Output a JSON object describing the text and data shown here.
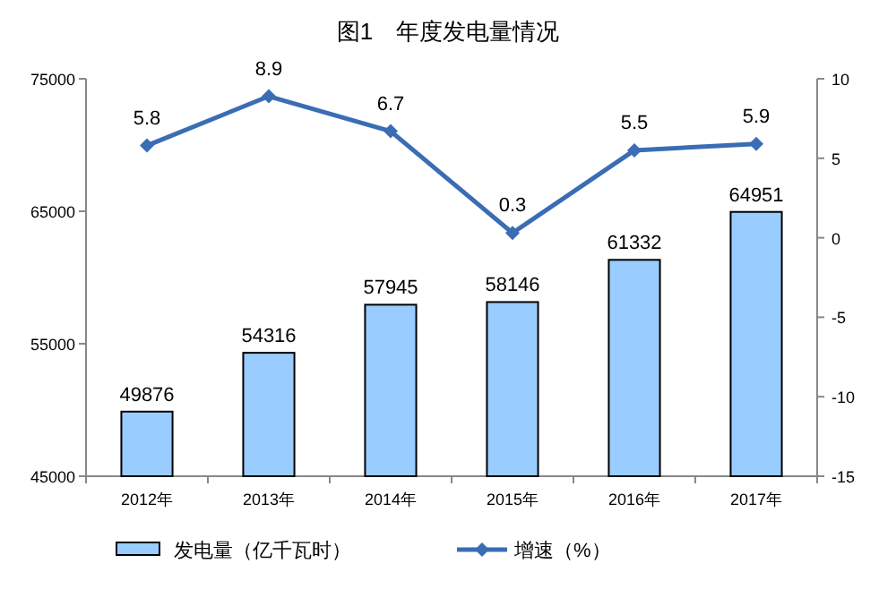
{
  "chart_data": {
    "type": "bar",
    "title": "图1　年度发电量情况",
    "categories": [
      "2012年",
      "2013年",
      "2014年",
      "2015年",
      "2016年",
      "2017年"
    ],
    "series": [
      {
        "name": "发电量（亿千瓦时）",
        "color": "#99ccff",
        "values": [
          49876,
          54316,
          57945,
          58146,
          61332,
          64951
        ]
      },
      {
        "name": "增速（%）",
        "type": "line",
        "axis": "y2",
        "color": "#3a6db4",
        "marker": "diamond",
        "values": [
          5.8,
          8.9,
          6.7,
          0.3,
          5.5,
          5.9
        ]
      }
    ],
    "ylim": [
      45000,
      75000
    ],
    "yticks": [
      45000,
      55000,
      65000,
      75000
    ],
    "y2lim": [
      -15,
      10
    ],
    "y2ticks": [
      -15,
      -10,
      -5,
      0,
      5,
      10
    ],
    "data_labels": true,
    "legend": "bottom",
    "grid": false
  }
}
